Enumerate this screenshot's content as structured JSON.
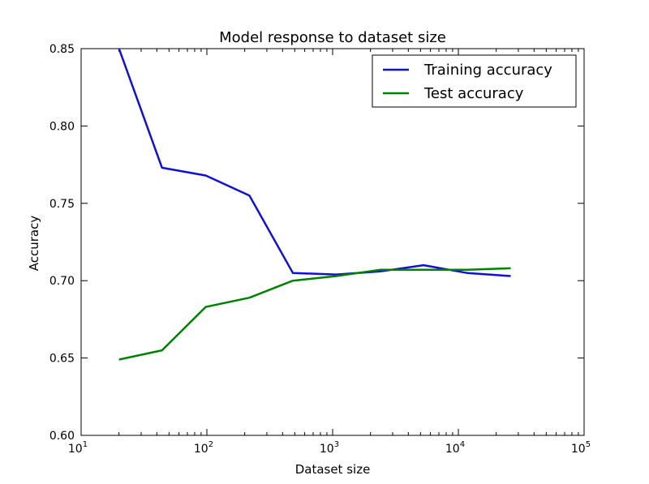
{
  "chart_data": {
    "type": "line",
    "title": "Model response to dataset size",
    "xlabel": "Dataset size",
    "ylabel": "Accuracy",
    "xscale": "log",
    "xlim": [
      10,
      100000
    ],
    "ylim": [
      0.6,
      0.85
    ],
    "x": [
      20,
      44,
      98,
      218,
      483,
      1072,
      2381,
      5285,
      11735,
      26053
    ],
    "series": [
      {
        "name": "Training accuracy",
        "color": "#1010d0",
        "values": [
          0.85,
          0.773,
          0.768,
          0.755,
          0.705,
          0.704,
          0.706,
          0.71,
          0.705,
          0.703
        ]
      },
      {
        "name": "Test accuracy",
        "color": "#008000",
        "values": [
          0.649,
          0.655,
          0.683,
          0.689,
          0.7,
          0.703,
          0.707,
          0.707,
          0.707,
          0.708
        ]
      }
    ],
    "y_ticks": [
      "0.60",
      "0.65",
      "0.70",
      "0.75",
      "0.80",
      "0.85"
    ],
    "x_ticks": [
      {
        "base": "10",
        "exp": "1"
      },
      {
        "base": "10",
        "exp": "2"
      },
      {
        "base": "10",
        "exp": "3"
      },
      {
        "base": "10",
        "exp": "4"
      },
      {
        "base": "10",
        "exp": "5"
      }
    ],
    "legend_position": "top-right",
    "grid": false
  }
}
